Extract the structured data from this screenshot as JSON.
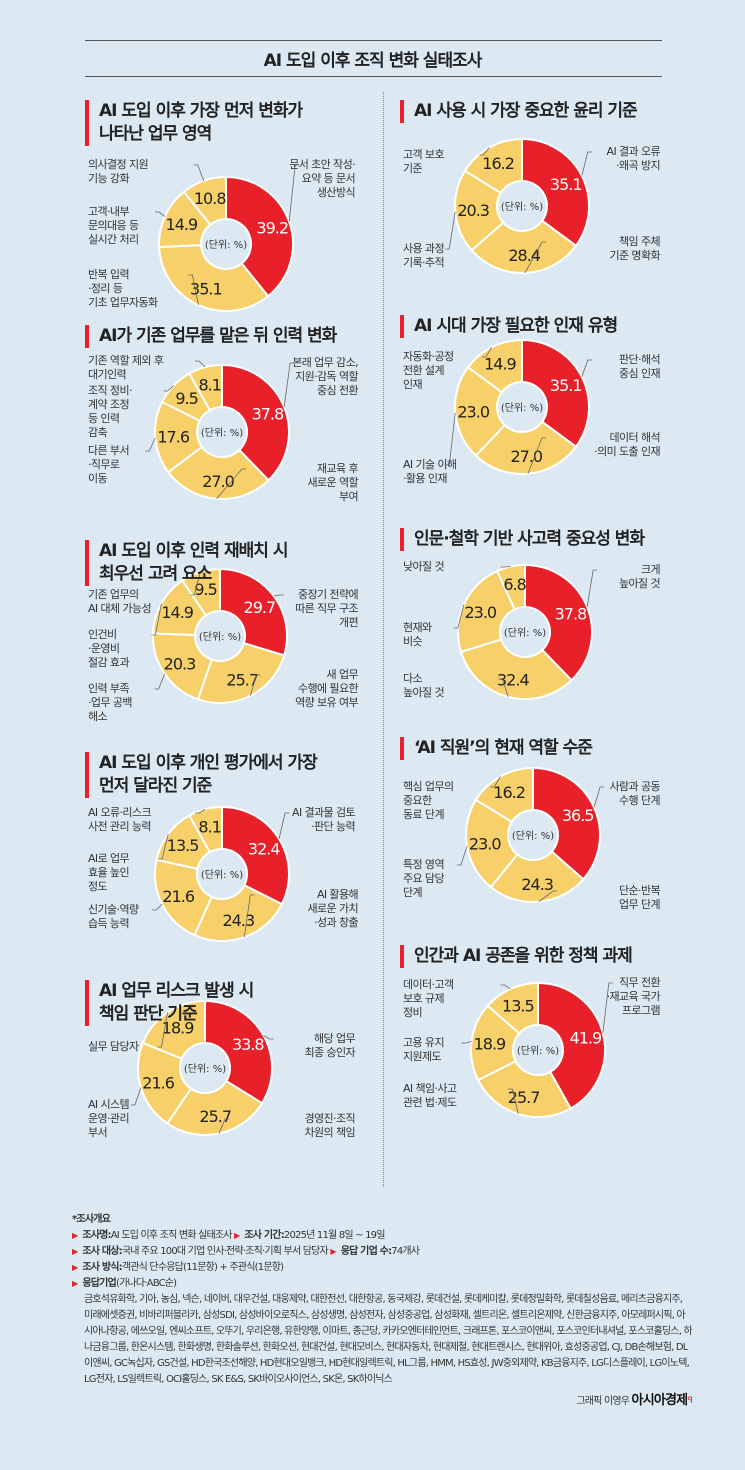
{
  "header": {
    "title": "AI 도입 이후 조직 변화 실태조사"
  },
  "colors": {
    "highlight": "#e8202a",
    "slice": "#f8d06a",
    "background": "#dce9f3"
  },
  "chart_data": [
    {
      "type": "pie",
      "title": "AI 도입 이후 가장 먼저 변화가\n나타난 업무 영역",
      "unit": "(단위: %)",
      "categories": [
        "문서 초안 작성·\n요약 등 문서\n생산방식",
        "반복 입력\n·정리 등\n기초 업무자동화",
        "고객·내부\n문의대응 등\n실시간 처리",
        "의사결정 지원\n기능 강화"
      ],
      "values": [
        39.2,
        35.1,
        14.9,
        10.8
      ]
    },
    {
      "type": "pie",
      "title": "AI가 기존 업무를 맡은 뒤 인력 변화",
      "unit": "(단위: %)",
      "categories": [
        "본래 업무 감소,\n지원·감독 역할\n중심 전환",
        "재교육 후\n새로운 역할\n부여",
        "다른 부서\n·직무로\n이동",
        "조직 정비·\n계약 조정\n등 인력\n감축",
        "기존 역할 제외 후\n대기인력"
      ],
      "values": [
        37.8,
        27.0,
        17.6,
        9.5,
        8.1
      ]
    },
    {
      "type": "pie",
      "title": "AI 도입 이후 인력 재배치 시\n최우선 고려 요소",
      "unit": "(단위: %)",
      "categories": [
        "중장기 전략에\n따른 직무 구조\n개편",
        "새 업무\n수행에 필요한\n역량 보유 여부",
        "인력 부족\n·업무 공백\n해소",
        "인건비\n·운영비\n절감 효과",
        "기존 업무의\nAI 대체 가능성"
      ],
      "values": [
        29.7,
        25.7,
        20.3,
        14.9,
        9.5
      ]
    },
    {
      "type": "pie",
      "title": "AI 도입 이후 개인 평가에서 가장\n먼저 달라진 기준",
      "unit": "(단위: %)",
      "categories": [
        "AI 결과물 검토\n·판단 능력",
        "AI 활용해\n새로운 가치\n·성과 창출",
        "신기술·역량\n습득 능력",
        "AI로 업무\n효율 높인\n정도",
        "AI 오류·리스크\n사전 관리 능력"
      ],
      "values": [
        32.4,
        24.3,
        21.6,
        13.5,
        8.1
      ]
    },
    {
      "type": "pie",
      "title": "AI 업무 리스크 발생 시\n책임 판단 기준",
      "unit": "(단위: %)",
      "categories": [
        "해당 업무\n최종 승인자",
        "경영진·조직\n차원의 책임",
        "AI 시스템\n운영·관리\n부서",
        "실무 담당자"
      ],
      "values": [
        33.8,
        25.7,
        21.6,
        18.9
      ]
    },
    {
      "type": "pie",
      "title": "AI 사용 시 가장 중요한 윤리 기준",
      "unit": "(단위: %)",
      "categories": [
        "AI 결과 오류\n·왜곡 방지",
        "책임 주체\n기준 명확화",
        "사용 과정\n기록·추적",
        "고객 보호\n기준"
      ],
      "values": [
        35.1,
        28.4,
        20.3,
        16.2
      ]
    },
    {
      "type": "pie",
      "title": "AI 시대 가장 필요한 인재 유형",
      "unit": "(단위: %)",
      "categories": [
        "판단·해석\n중심 인재",
        "데이터 해석\n·의미 도출 인재",
        "AI 기술 이해\n·활용 인재",
        "자동화·공정\n전환 설계\n인재"
      ],
      "values": [
        35.1,
        27.0,
        23.0,
        14.9
      ]
    },
    {
      "type": "pie",
      "title": "인문·철학 기반 사고력 중요성 변화",
      "unit": "(단위: %)",
      "categories": [
        "크게\n높아질 것",
        "다소\n높아질 것",
        "현재와\n비슷",
        "낮아질 것"
      ],
      "values": [
        37.8,
        32.4,
        23.0,
        6.8
      ]
    },
    {
      "type": "pie",
      "title": "‘AI 직원’의 현재 역할 수준",
      "unit": "(단위: %)",
      "categories": [
        "사람과 공동\n수행 단계",
        "단순·반복\n업무 단계",
        "특정 영역\n주요 담당\n단계",
        "핵심 업무의\n중요한\n동료 단계"
      ],
      "values": [
        36.5,
        24.3,
        23.0,
        16.2
      ]
    },
    {
      "type": "pie",
      "title": "인간과 AI 공존을 위한 정책 과제",
      "unit": "(단위: %)",
      "categories": [
        "직무 전환\n·재교육 국가\n프로그램",
        "AI 책임·사고\n관련 법·제도",
        "고용 유지\n지원제도",
        "데이터·고객\n보호 규제\n정비"
      ],
      "values": [
        41.9,
        25.7,
        18.9,
        13.5
      ]
    }
  ],
  "footer": {
    "heading": "*조사개요",
    "name_label": "조사명:",
    "name": "AI 도입 이후 조직 변화 실태조사",
    "period_label": "조사 기간:",
    "period": "2025년 11월 8일 ~ 19일",
    "target_label": "조사 대상:",
    "target": "국내 주요 100대 기업 인사·전략·조직·기획 부서 담당자",
    "count_label": "응답 기업 수:",
    "count": "74개사",
    "method_label": "조사 방식:",
    "method": "객관식 단수응답(11문항) + 주관식(1문항)",
    "companies_label": "응답기업",
    "companies_order": "(가나다·ABC순)",
    "companies": "금호석유화학, 기아, 농심, 넥슨, 네이버, 대우건설, 대웅제약, 대한전선, 대한항공, 동국제강, 롯데건설, 롯데케미칼, 롯데정밀화학, 롯데칠성음료, 메리츠금융지주, 미래에셋증권, 비바리퍼블리카, 삼성SDI, 삼성바이오로직스, 삼성생명, 삼성전자, 삼성중공업, 삼성화재, 셀트리온, 셀트리온제약, 신한금융지주, 아모레퍼시픽, 아시아나항공, 에쓰오일, 엔씨소프트, 오뚜기, 우리은행, 유한양행, 이마트, 종근당, 카카오엔터테인먼트, 크래프톤, 포스코이앤씨, 포스코인터내셔널, 포스코홀딩스, 하나금융그룹, 한온시스템, 한화생명, 한화솔루션, 한화오션, 현대건설, 현대모비스, 현대자동차, 현대제철, 현대트랜시스, 현대위아, 효성중공업, CJ, DB손해보험, DL이앤씨, GC녹십자, GS건설, HD한국조선해양, HD현대오일뱅크, HD현대일렉트릭, HL그룹, HMM, HS효성, JW중외제약, KB금융지주, LG디스플레이, LG이노텍, LG전자, LS일렉트릭, OCI홀딩스, SK E&S, SK바이오사이언스, SK온, SK하이닉스",
    "credit": "그래픽 이영우",
    "brand": "아시아경제"
  }
}
